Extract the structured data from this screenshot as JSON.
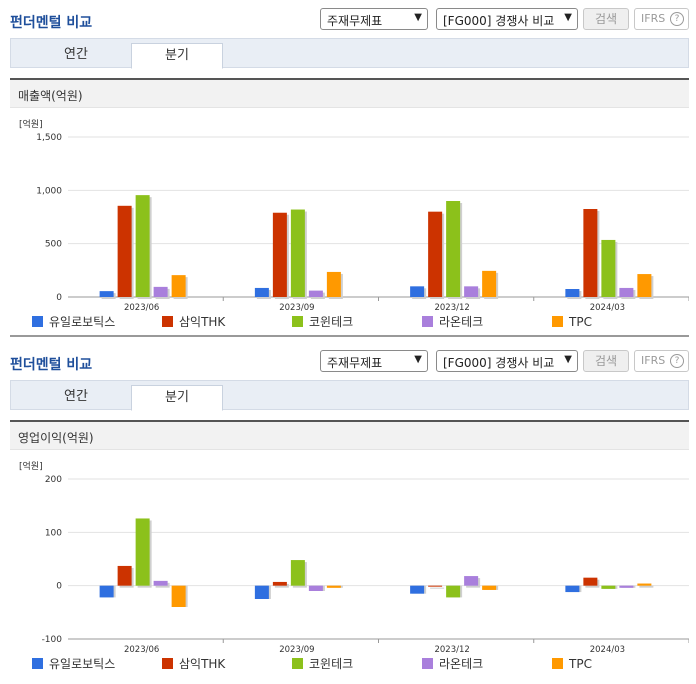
{
  "controls": {
    "title": "펀더멘털 비교",
    "select_type": "주재무제표",
    "select_compare": "[FG000] 경쟁사 비교",
    "search_label": "검색",
    "ifrs_label": "IFRS",
    "help_icon": "question-circle-icon",
    "tabs": [
      "연간",
      "분기"
    ],
    "active_tab": "분기"
  },
  "colors": {
    "title": "#1f4f9b",
    "series": [
      "#2f6fe0",
      "#cc3300",
      "#8cc11b",
      "#a97fdc",
      "#ff9900"
    ],
    "grid": "#e2e2e2"
  },
  "chart_data": [
    {
      "type": "bar",
      "title": "매출액(억원)",
      "unit_label": "[억원]",
      "categories": [
        "2023/06",
        "2023/09",
        "2023/12",
        "2024/03"
      ],
      "ylim": [
        0,
        1500
      ],
      "yticks": [
        0,
        500,
        1000,
        1500
      ],
      "ytick_labels": [
        "0",
        "500",
        "1,000",
        "1,500"
      ],
      "grid": true,
      "legend": "bottom",
      "series": [
        {
          "name": "유일로보틱스",
          "values": [
            55,
            85,
            100,
            75
          ]
        },
        {
          "name": "삼익THK",
          "values": [
            855,
            790,
            800,
            825
          ]
        },
        {
          "name": "코윈테크",
          "values": [
            955,
            820,
            900,
            535
          ]
        },
        {
          "name": "라온테크",
          "values": [
            95,
            60,
            100,
            85
          ]
        },
        {
          "name": "TPC",
          "values": [
            205,
            235,
            245,
            215
          ]
        }
      ]
    },
    {
      "type": "bar",
      "title": "영업이익(억원)",
      "unit_label": "[억원]",
      "categories": [
        "2023/06",
        "2023/09",
        "2023/12",
        "2024/03"
      ],
      "ylim": [
        -100,
        200
      ],
      "yticks": [
        -100,
        0,
        100,
        200
      ],
      "ytick_labels": [
        "-100",
        "0",
        "100",
        "200"
      ],
      "grid": true,
      "legend": "bottom",
      "series": [
        {
          "name": "유일로보틱스",
          "values": [
            -22,
            -25,
            -15,
            -12
          ]
        },
        {
          "name": "삼익THK",
          "values": [
            37,
            7,
            0,
            15
          ]
        },
        {
          "name": "코윈테크",
          "values": [
            126,
            48,
            -22,
            -6
          ]
        },
        {
          "name": "라온테크",
          "values": [
            9,
            -10,
            18,
            -4
          ]
        },
        {
          "name": "TPC",
          "values": [
            -40,
            -4,
            -8,
            4
          ]
        }
      ]
    }
  ]
}
